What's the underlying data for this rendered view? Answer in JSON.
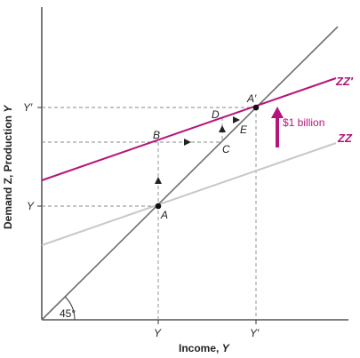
{
  "axes": {
    "x_title_text": "Income, ",
    "x_title_var": "Y",
    "y_title_text": "Demand Z, Production ",
    "y_title_var": "Y",
    "x_ticks": [
      "Y",
      "Y′"
    ],
    "y_ticks": [
      "Y",
      "Y′"
    ]
  },
  "lines": {
    "zz_label": "ZZ",
    "zz_prime_label": "ZZ′",
    "forty_five_label": "45°"
  },
  "points": {
    "A": "A",
    "A_prime": "A′",
    "B": "B",
    "C": "C",
    "D": "D",
    "E": "E"
  },
  "shift_annotation": "$1 billion",
  "colors": {
    "zz_prime": "#b5157a",
    "zz": "#c8c8c8",
    "forty_five": "#707070",
    "guides": "#8a8a8a"
  }
}
